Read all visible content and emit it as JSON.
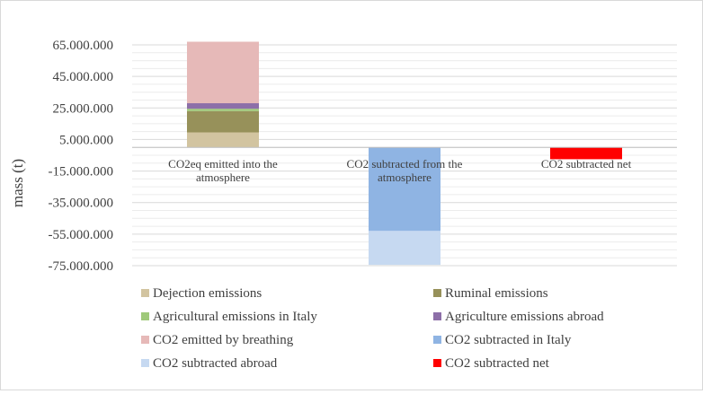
{
  "chart_data": {
    "type": "bar",
    "stacked": true,
    "categories": [
      [
        "CO2eq emitted into the",
        "atmosphere"
      ],
      [
        "CO2 subtracted from the",
        "atmosphere"
      ],
      [
        "CO2 subtracted net"
      ]
    ],
    "ylabel": "mass  (t)",
    "ylim": [
      -75000000,
      65000000
    ],
    "ytick_labels": [
      "65.000.000",
      "45.000.000",
      "25.000.000",
      "5.000.000",
      "-15.000.000",
      "-35.000.000",
      "-55.000.000",
      "-75.000.000"
    ],
    "yticks": [
      65000000,
      45000000,
      25000000,
      5000000,
      -15000000,
      -35000000,
      -55000000,
      -75000000
    ],
    "minor_grid_step": 5000000,
    "grid": true,
    "legend_position": "bottom",
    "series": [
      {
        "name": "Dejection emissions",
        "color": "#d2c4a0",
        "values": [
          9500000,
          0,
          0
        ]
      },
      {
        "name": "Ruminal emissions",
        "color": "#97915a",
        "values": [
          13500000,
          0,
          0
        ]
      },
      {
        "name": "Agricultural emissions in Italy",
        "color": "#9fc97a",
        "values": [
          1500000,
          0,
          0
        ]
      },
      {
        "name": "Agriculture emissions abroad",
        "color": "#8d6fa8",
        "values": [
          3500000,
          0,
          0
        ]
      },
      {
        "name": "CO2 emitted by breathing",
        "color": "#e6b9b8",
        "values": [
          39000000,
          0,
          0
        ]
      },
      {
        "name": "CO2 subtracted in Italy",
        "color": "#8fb4e3",
        "values": [
          0,
          -53000000,
          0
        ]
      },
      {
        "name": "CO2 subtracted abroad",
        "color": "#c6d9f1",
        "values": [
          0,
          -21500000,
          0
        ]
      },
      {
        "name": "CO2 subtracted net",
        "color": "#ff0000",
        "values": [
          0,
          0,
          -7500000
        ]
      }
    ]
  }
}
